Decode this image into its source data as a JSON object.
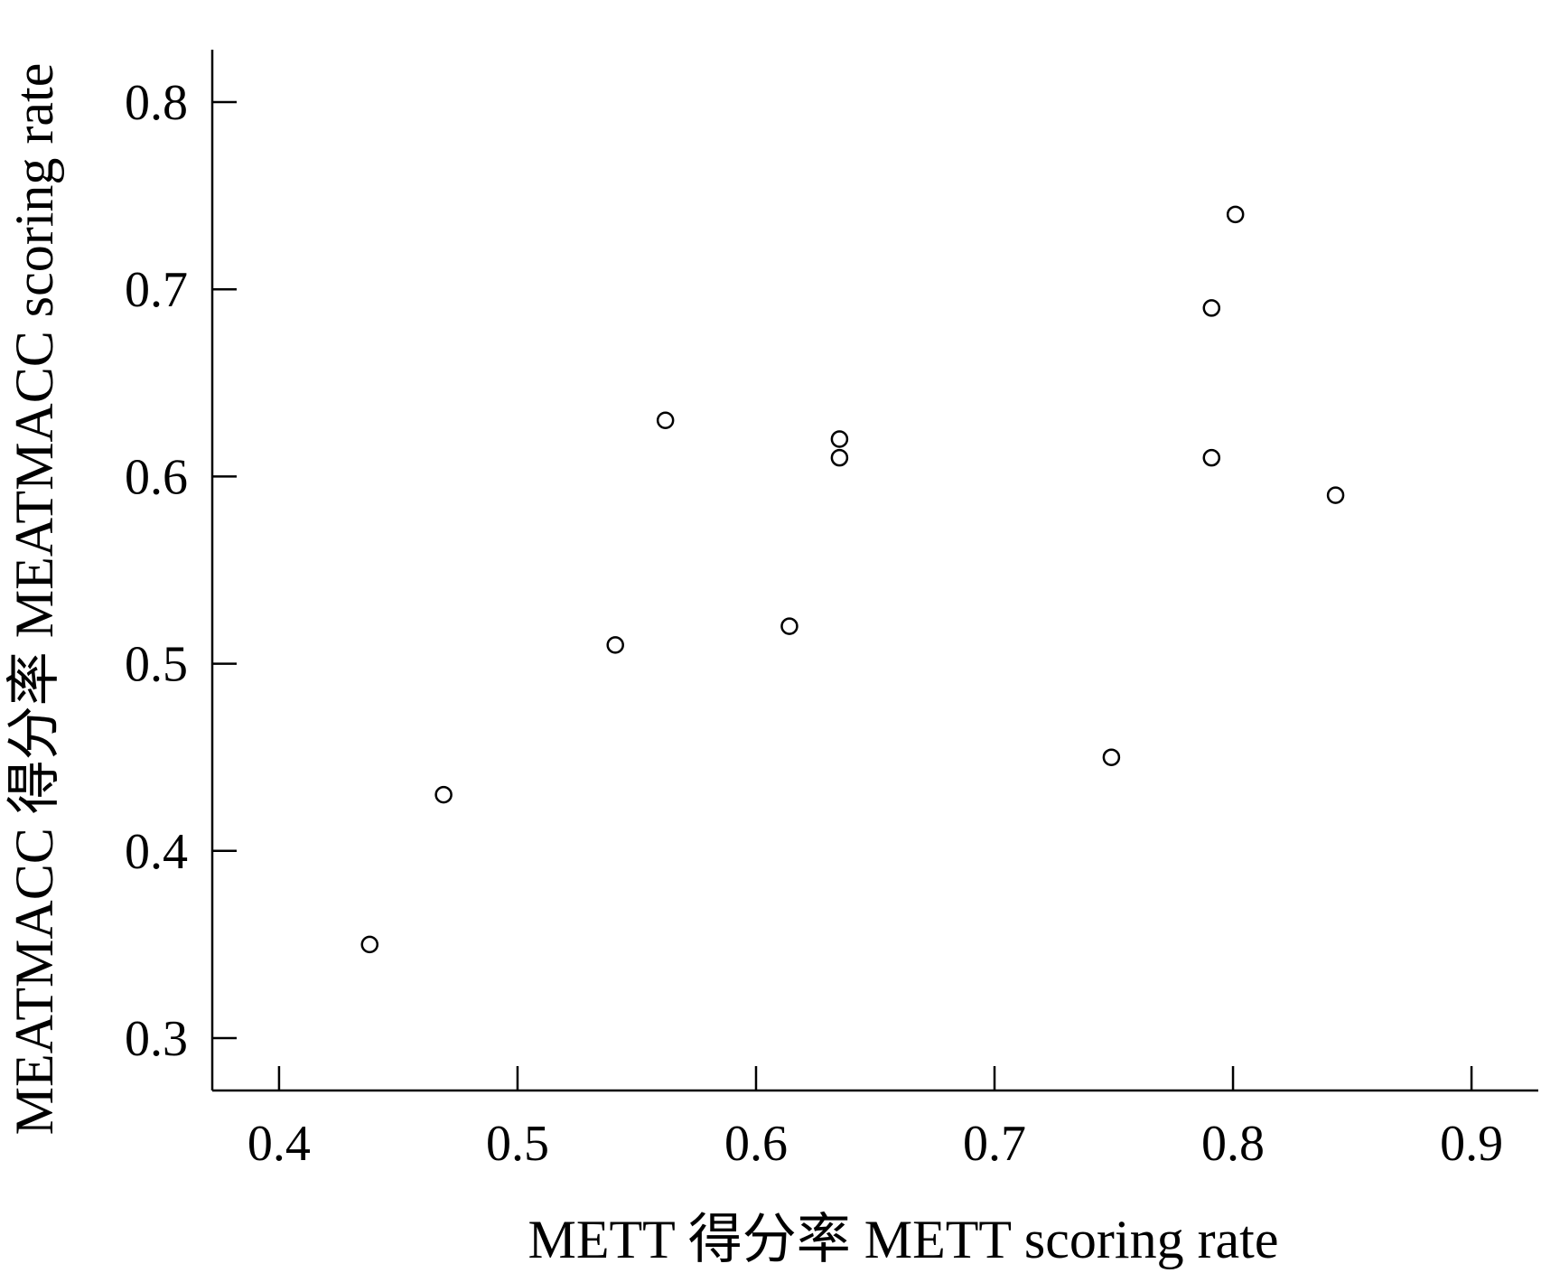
{
  "chart_data": {
    "type": "scatter",
    "title": "",
    "xlabel": "METT 得分率 METT scoring rate",
    "ylabel": "MEATMACC 得分率 MEATMACC scoring rate",
    "xlim": [
      0.372,
      0.928
    ],
    "ylim": [
      0.272,
      0.828
    ],
    "x_ticks": [
      0.4,
      0.5,
      0.6,
      0.7,
      0.8,
      0.9
    ],
    "x_tick_labels": [
      "0.4",
      "0.5",
      "0.6",
      "0.7",
      "0.8",
      "0.9"
    ],
    "y_ticks": [
      0.3,
      0.4,
      0.5,
      0.6,
      0.7,
      0.8
    ],
    "y_tick_labels": [
      "0.3",
      "0.4",
      "0.5",
      "0.6",
      "0.7",
      "0.8"
    ],
    "grid": false,
    "legend": "none",
    "marker": "open-circle",
    "color": "#000000",
    "series": [
      {
        "points": [
          {
            "x": 0.438,
            "y": 0.35
          },
          {
            "x": 0.469,
            "y": 0.43
          },
          {
            "x": 0.541,
            "y": 0.51
          },
          {
            "x": 0.562,
            "y": 0.63
          },
          {
            "x": 0.614,
            "y": 0.52
          },
          {
            "x": 0.635,
            "y": 0.62
          },
          {
            "x": 0.635,
            "y": 0.61
          },
          {
            "x": 0.749,
            "y": 0.45
          },
          {
            "x": 0.791,
            "y": 0.69
          },
          {
            "x": 0.791,
            "y": 0.61
          },
          {
            "x": 0.801,
            "y": 0.74
          },
          {
            "x": 0.843,
            "y": 0.59
          }
        ]
      }
    ]
  }
}
